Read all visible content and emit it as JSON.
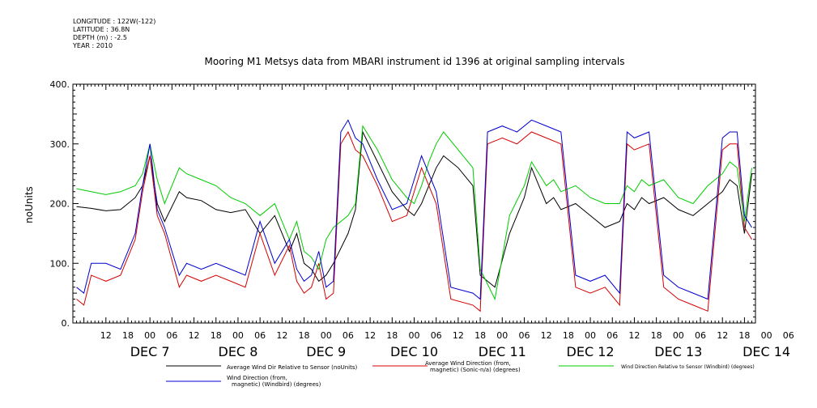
{
  "header": {
    "longitude": "LONGITUDE : 122W(-122)",
    "latitude": "LATITUDE : 36.8N",
    "depth": "DEPTH (m) : -2.5",
    "year": "YEAR : 2010"
  },
  "chart_data": {
    "type": "line",
    "title": "Mooring M1 Metsys data from MBARI instrument id 1396 at original sampling intervals",
    "ylabel": "noUnits",
    "xlabel": "",
    "ylim": [
      0,
      400
    ],
    "y_ticks": [
      0,
      100,
      200,
      300,
      400
    ],
    "y_tick_labels": [
      "0.",
      "100.",
      "200.",
      "300.",
      "400."
    ],
    "x_range_hours": [
      -21,
      165
    ],
    "hour_ticks": [
      "12",
      "18",
      "00",
      "06",
      "12",
      "18",
      "00",
      "06",
      "12",
      "18",
      "00",
      "06",
      "12",
      "18",
      "00",
      "06",
      "12",
      "18",
      "00",
      "06",
      "12",
      "18",
      "00",
      "06",
      "12",
      "18",
      "00",
      "06",
      "12",
      "18",
      "00",
      "06"
    ],
    "day_labels": [
      "DEC  7",
      "DEC  8",
      "DEC  9",
      "DEC 10",
      "DEC 11",
      "DEC 12",
      "DEC 13",
      "DEC 14"
    ],
    "grid": false,
    "legend_position": "bottom",
    "series": [
      {
        "name": "Average Wind Dir Relative to Sensor (noUnits)",
        "color": "#000000",
        "x": [
          -20,
          -16,
          -12,
          -8,
          -4,
          -2,
          0,
          2,
          4,
          8,
          10,
          14,
          18,
          22,
          26,
          30,
          34,
          38,
          40,
          42,
          44,
          46,
          48,
          50,
          54,
          56,
          58,
          62,
          66,
          70,
          72,
          74,
          76,
          78,
          80,
          84,
          88,
          90,
          94,
          98,
          102,
          104,
          106,
          108,
          110,
          112,
          116,
          120,
          124,
          128,
          130,
          132,
          134,
          136,
          140,
          144,
          148,
          152,
          156,
          158,
          160,
          162,
          164
        ],
        "values": [
          195,
          192,
          188,
          190,
          210,
          230,
          280,
          200,
          170,
          220,
          210,
          205,
          190,
          185,
          190,
          150,
          180,
          120,
          150,
          100,
          90,
          70,
          80,
          100,
          150,
          190,
          320,
          270,
          220,
          190,
          180,
          200,
          230,
          260,
          280,
          260,
          230,
          80,
          60,
          150,
          210,
          260,
          230,
          200,
          210,
          190,
          200,
          180,
          160,
          170,
          200,
          190,
          210,
          200,
          210,
          190,
          180,
          200,
          220,
          240,
          230,
          150,
          250
        ]
      },
      {
        "name": "Average Wind Direction (from, magnetic) (Sonic-n/a) (degrees)",
        "color": "#d40000",
        "x": [
          -20,
          -18,
          -16,
          -12,
          -8,
          -4,
          -2,
          0,
          2,
          4,
          8,
          10,
          14,
          18,
          22,
          26,
          30,
          34,
          38,
          40,
          42,
          44,
          46,
          48,
          50,
          52,
          54,
          56,
          58,
          62,
          66,
          70,
          74,
          78,
          82,
          88,
          90,
          92,
          96,
          100,
          104,
          108,
          112,
          116,
          120,
          124,
          128,
          130,
          132,
          136,
          140,
          144,
          148,
          152,
          156,
          158,
          160,
          162,
          164
        ],
        "values": [
          40,
          30,
          80,
          70,
          80,
          140,
          220,
          280,
          180,
          150,
          60,
          80,
          70,
          80,
          70,
          60,
          150,
          80,
          130,
          70,
          50,
          60,
          100,
          40,
          50,
          300,
          320,
          290,
          280,
          230,
          170,
          180,
          260,
          200,
          40,
          30,
          20,
          300,
          310,
          300,
          320,
          310,
          300,
          60,
          50,
          60,
          30,
          300,
          290,
          300,
          60,
          40,
          30,
          20,
          290,
          300,
          300,
          160,
          140
        ]
      },
      {
        "name": "Wind Direction Relative to Sensor (Windbird) (degrees)",
        "color": "#00cc00",
        "x": [
          -20,
          -16,
          -12,
          -8,
          -4,
          -2,
          0,
          2,
          4,
          8,
          10,
          14,
          18,
          22,
          26,
          30,
          34,
          38,
          40,
          42,
          44,
          46,
          48,
          50,
          54,
          56,
          58,
          62,
          66,
          70,
          72,
          74,
          76,
          78,
          80,
          84,
          88,
          90,
          94,
          98,
          102,
          104,
          106,
          108,
          110,
          112,
          116,
          120,
          124,
          128,
          130,
          132,
          134,
          136,
          140,
          144,
          148,
          152,
          156,
          158,
          160,
          162,
          164
        ],
        "values": [
          225,
          220,
          215,
          220,
          230,
          250,
          300,
          240,
          200,
          260,
          250,
          240,
          230,
          210,
          200,
          180,
          200,
          140,
          170,
          120,
          110,
          90,
          140,
          160,
          180,
          200,
          330,
          290,
          240,
          210,
          200,
          230,
          270,
          300,
          320,
          290,
          260,
          90,
          40,
          180,
          230,
          270,
          250,
          230,
          240,
          220,
          230,
          210,
          200,
          200,
          230,
          220,
          240,
          230,
          240,
          210,
          200,
          230,
          250,
          270,
          260,
          170,
          260
        ]
      },
      {
        "name": "Wind Direction (from, magnetic) (Windbird) (degrees)",
        "color": "#0000d0",
        "x": [
          -20,
          -18,
          -16,
          -12,
          -8,
          -4,
          -2,
          0,
          2,
          4,
          8,
          10,
          14,
          18,
          22,
          26,
          30,
          34,
          38,
          40,
          42,
          44,
          46,
          48,
          50,
          52,
          54,
          56,
          58,
          62,
          66,
          70,
          74,
          78,
          82,
          88,
          90,
          92,
          96,
          100,
          104,
          108,
          112,
          116,
          120,
          124,
          128,
          130,
          132,
          136,
          140,
          144,
          148,
          152,
          156,
          158,
          160,
          162,
          164
        ],
        "values": [
          60,
          50,
          100,
          100,
          90,
          150,
          230,
          300,
          190,
          160,
          80,
          100,
          90,
          100,
          90,
          80,
          170,
          100,
          140,
          90,
          70,
          80,
          120,
          60,
          70,
          320,
          340,
          310,
          300,
          240,
          190,
          200,
          280,
          220,
          60,
          50,
          40,
          320,
          330,
          320,
          340,
          330,
          320,
          80,
          70,
          80,
          50,
          320,
          310,
          320,
          80,
          60,
          50,
          40,
          310,
          320,
          320,
          180,
          160
        ]
      }
    ]
  }
}
